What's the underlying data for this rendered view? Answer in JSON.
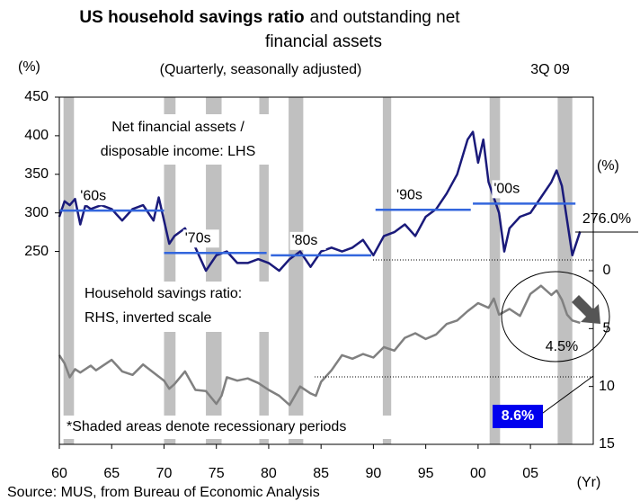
{
  "chart_data": {
    "type": "line",
    "title": [
      "US household savings ratio",
      "and  outstanding net",
      "financial assets"
    ],
    "subtitle": "(Quarterly, seasonally adjusted)",
    "period": "3Q 09",
    "ylabel": "(%)",
    "y2label": "(%)",
    "xlabel": "(Yr)",
    "source": "Source: MUS, from Bureau of Economic Analysis",
    "annotations": [
      "Net financial assets /",
      "disposable income: LHS",
      "Household savings ratio:",
      "RHS, inverted scale",
      "*Shaded areas denote recessionary periods"
    ],
    "xlim": [
      1960,
      2011
    ],
    "xticks": [
      {
        "value": 1960,
        "label": "60"
      },
      {
        "value": 1965,
        "label": "65"
      },
      {
        "value": 1970,
        "label": "70"
      },
      {
        "value": 1975,
        "label": "75"
      },
      {
        "value": 1980,
        "label": "80"
      },
      {
        "value": 1985,
        "label": "85"
      },
      {
        "value": 1990,
        "label": "90"
      },
      {
        "value": 1995,
        "label": "95"
      },
      {
        "value": 2000,
        "label": "00"
      },
      {
        "value": 2005,
        "label": "05"
      }
    ],
    "ylim": [
      0,
      450
    ],
    "yticks": [
      250,
      300,
      350,
      400,
      450
    ],
    "y2lim": [
      15,
      -15
    ],
    "y2ticks": [
      0,
      5,
      10,
      15
    ],
    "recessions": [
      [
        1960.4,
        1961.4
      ],
      [
        1970.0,
        1971.1
      ],
      [
        1974.0,
        1975.5
      ],
      [
        1979.1,
        1980.0
      ],
      [
        1981.9,
        1983.3
      ],
      [
        1990.9,
        1991.7
      ],
      [
        2001.1,
        2002.1
      ],
      [
        2007.6,
        2009.0
      ]
    ],
    "averages": [
      {
        "label": "'60s",
        "start": 1960,
        "end": 1970,
        "value": 303
      },
      {
        "label": "'70s",
        "start": 1970,
        "end": 1979.8,
        "value": 248
      },
      {
        "label": "'80s",
        "start": 1980.2,
        "end": 1989.8,
        "value": 245
      },
      {
        "label": "'90s",
        "start": 1990.2,
        "end": 1999.3,
        "value": 304
      },
      {
        "label": "'00s",
        "start": 1999.5,
        "end": 2009.3,
        "value": 312
      }
    ],
    "average_color": "#3366dd",
    "series": [
      {
        "name": "Net financial assets / disposable income",
        "color": "#1a1a7a",
        "axis": "y",
        "x": [
          1960,
          1960.5,
          1961,
          1961.5,
          1962,
          1962.5,
          1963,
          1964,
          1965,
          1966,
          1967,
          1968,
          1969,
          1969.5,
          1970,
          1970.5,
          1971,
          1972,
          1973,
          1974,
          1975,
          1976,
          1977,
          1978,
          1979,
          1980,
          1981,
          1982,
          1983,
          1984,
          1985,
          1986,
          1987,
          1988,
          1989,
          1990,
          1991,
          1992,
          1993,
          1994,
          1995,
          1996,
          1997,
          1998,
          1999,
          1999.5,
          2000,
          2000.5,
          2001,
          2002,
          2002.5,
          2003,
          2004,
          2005,
          2006,
          2007,
          2007.5,
          2008,
          2008.5,
          2009,
          2009.75
        ],
        "values": [
          295,
          315,
          310,
          318,
          285,
          310,
          305,
          310,
          305,
          290,
          305,
          310,
          290,
          320,
          290,
          260,
          270,
          280,
          255,
          225,
          245,
          250,
          235,
          235,
          240,
          235,
          225,
          240,
          250,
          230,
          250,
          255,
          250,
          255,
          265,
          245,
          270,
          275,
          285,
          270,
          295,
          305,
          325,
          350,
          395,
          405,
          365,
          395,
          340,
          300,
          250,
          280,
          295,
          300,
          320,
          340,
          355,
          335,
          290,
          245,
          276
        ]
      },
      {
        "name": "Household savings ratio",
        "color": "#808080",
        "axis": "y2",
        "x": [
          1960,
          1960.5,
          1961,
          1961.5,
          1962,
          1963,
          1963.5,
          1964,
          1965,
          1966,
          1967,
          1968,
          1969,
          1970,
          1970.5,
          1971,
          1972,
          1973,
          1974,
          1975,
          1975.5,
          1976,
          1977,
          1978,
          1979,
          1980,
          1981,
          1982,
          1983,
          1984,
          1984.5,
          1985,
          1986,
          1987,
          1988,
          1989,
          1990,
          1991,
          1992,
          1993,
          1994,
          1995,
          1996,
          1997,
          1998,
          1999,
          2000,
          2001,
          2001.5,
          2002,
          2003,
          2004,
          2005,
          2006,
          2007,
          2007.5,
          2008,
          2008.5,
          2009,
          2009.75
        ],
        "values": [
          7.3,
          8.0,
          9.2,
          8.5,
          8.8,
          8.2,
          8.6,
          8.3,
          7.7,
          8.7,
          9.0,
          8.1,
          8.8,
          9.5,
          10.2,
          9.8,
          8.7,
          10.3,
          10.4,
          11.5,
          10.8,
          9.2,
          9.5,
          9.3,
          9.7,
          10.3,
          10.8,
          11.6,
          10.0,
          10.6,
          10.8,
          9.6,
          8.6,
          7.3,
          7.6,
          7.2,
          7.5,
          6.6,
          6.9,
          5.8,
          5.4,
          5.9,
          5.5,
          4.6,
          4.3,
          3.5,
          2.8,
          3.2,
          2.4,
          3.8,
          3.3,
          3.9,
          2.0,
          1.3,
          2.1,
          1.7,
          2.5,
          3.8,
          4.3,
          4.5
        ]
      }
    ],
    "value_labels": [
      "276.0%",
      "4.5%",
      "8.6%"
    ],
    "recession_color": "#c0c0c0"
  }
}
